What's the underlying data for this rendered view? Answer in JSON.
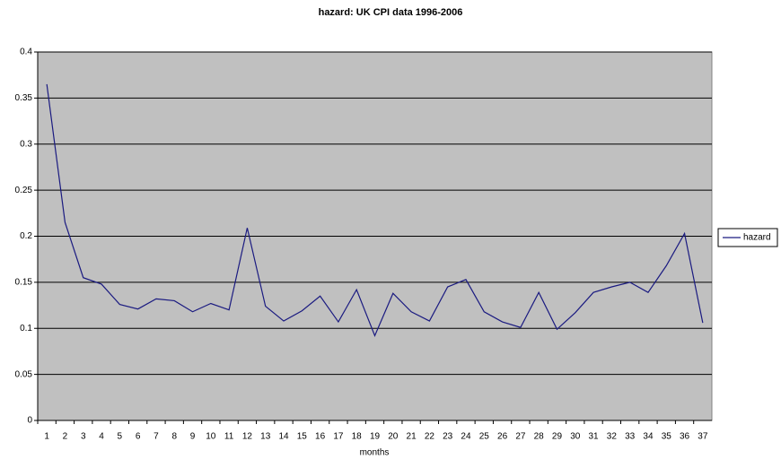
{
  "chart_data": {
    "type": "line",
    "title": "hazard: UK CPI data 1996-2006",
    "x_label": "months",
    "categories": [
      "1",
      "2",
      "3",
      "4",
      "5",
      "6",
      "7",
      "8",
      "9",
      "10",
      "11",
      "12",
      "13",
      "14",
      "15",
      "16",
      "17",
      "18",
      "19",
      "20",
      "21",
      "22",
      "23",
      "24",
      "25",
      "26",
      "27",
      "28",
      "29",
      "30",
      "31",
      "32",
      "33",
      "34",
      "35",
      "36",
      "37"
    ],
    "series": [
      {
        "name": "hazard",
        "color": "#1a1a80",
        "values": [
          0.365,
          0.215,
          0.155,
          0.148,
          0.126,
          0.121,
          0.132,
          0.13,
          0.118,
          0.127,
          0.12,
          0.209,
          0.124,
          0.108,
          0.119,
          0.135,
          0.107,
          0.142,
          0.092,
          0.138,
          0.118,
          0.108,
          0.145,
          0.153,
          0.118,
          0.107,
          0.101,
          0.139,
          0.099,
          0.117,
          0.139,
          0.145,
          0.15,
          0.139,
          0.168,
          0.203,
          0.106
        ]
      }
    ],
    "ylim": [
      0,
      0.4
    ],
    "yticks": [
      0,
      0.05,
      0.1,
      0.15,
      0.2,
      0.25,
      0.3,
      0.35,
      0.4
    ],
    "grid": true,
    "plot_background": "#c0c0c0",
    "legend": "right"
  }
}
